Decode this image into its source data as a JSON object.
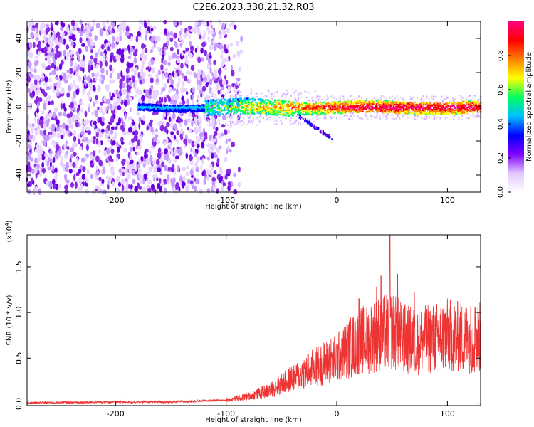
{
  "figure_title": "C2E6.2023.330.21.32.R03",
  "chart_data": [
    {
      "type": "heatmap",
      "title": "",
      "xlabel": "Height of straight line (km)",
      "ylabel": "Frequency (Hz)",
      "xlim": [
        -280,
        130
      ],
      "ylim": [
        -50,
        50
      ],
      "xticks": [
        -200,
        -100,
        0,
        100
      ],
      "yticks": [
        -40,
        -20,
        0,
        20,
        40
      ],
      "colorbar": {
        "label": "Normalized spectral amplitude",
        "range": [
          0,
          1
        ],
        "ticks": [
          "0.0",
          "0.2",
          "0.4",
          "0.6",
          "0.8"
        ],
        "colors": [
          "#ffffff",
          "#e0c8ff",
          "#8000ff",
          "#0000ff",
          "#00c0ff",
          "#00ff60",
          "#ffff00",
          "#ff8000",
          "#ff0000",
          "#ff0080"
        ]
      },
      "features": {
        "noise_region_x": [
          -280,
          -95
        ],
        "band_center_hz": 0,
        "band_start_x": -120,
        "band_end_x": 130,
        "hook_feature_x": [
          -35,
          -5
        ],
        "hook_feature_hz": [
          -5,
          -18
        ]
      }
    },
    {
      "type": "line",
      "title": "",
      "xlabel": "Height of straight line (km)",
      "ylabel": "SNR (10 * v/v)",
      "multiplier": "(x10",
      "multiplier_exp": "4",
      "multiplier_close": ")",
      "xlim": [
        -280,
        130
      ],
      "ylim": [
        -0.02,
        1.85
      ],
      "xticks": [
        -200,
        -100,
        0,
        100
      ],
      "yticks": [
        "0.0",
        "0.5",
        "1.0",
        "1.5"
      ],
      "ytick_values": [
        0.0,
        0.5,
        1.0,
        1.5
      ],
      "color": "#ee3333",
      "series": [
        {
          "x": [
            -280,
            -200,
            -150,
            -100,
            -80,
            -60,
            -40,
            -20,
            0,
            10,
            20,
            30,
            40,
            50,
            60,
            70,
            80,
            90,
            100,
            110,
            120,
            130
          ],
          "y": [
            0.01,
            0.02,
            0.02,
            0.04,
            0.08,
            0.15,
            0.28,
            0.4,
            0.5,
            0.6,
            0.68,
            0.72,
            0.78,
            0.8,
            0.72,
            0.68,
            0.7,
            0.72,
            0.75,
            0.73,
            0.72,
            0.72
          ],
          "peaks": [
            {
              "x": 48,
              "y": 1.85
            },
            {
              "x": 40,
              "y": 1.4
            },
            {
              "x": 55,
              "y": 1.42
            },
            {
              "x": 36,
              "y": 1.28
            },
            {
              "x": 20,
              "y": 1.15
            },
            {
              "x": 70,
              "y": 1.22
            },
            {
              "x": 125,
              "y": 1.05
            }
          ]
        }
      ]
    }
  ]
}
